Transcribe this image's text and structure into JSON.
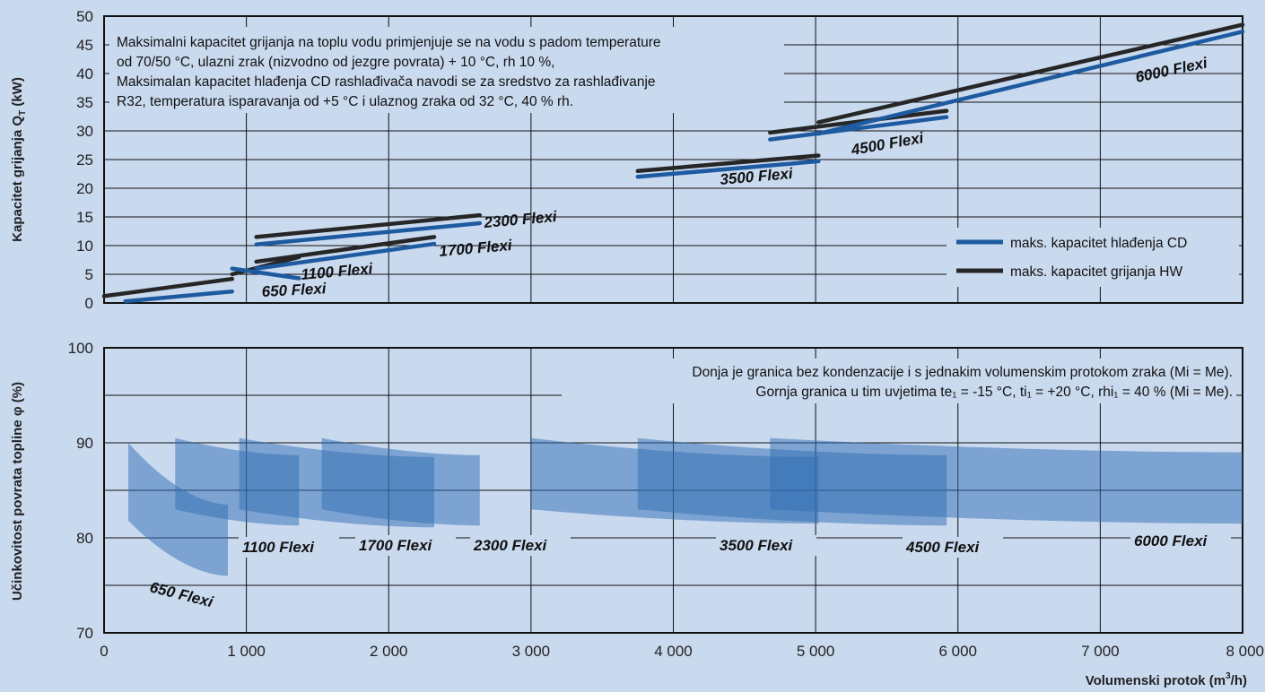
{
  "chart_data": [
    {
      "type": "line",
      "ylabel": "Kapacitet grijanja Q",
      "ylabel_sub": "T",
      "ylabel_unit": " (kW)",
      "xlim": [
        0,
        8000
      ],
      "ylim": [
        0,
        50
      ],
      "yticks": [
        "0",
        "5",
        "10",
        "15",
        "20",
        "25",
        "30",
        "35",
        "40",
        "45",
        "50"
      ],
      "grid": true,
      "note_lines": [
        "Maksimalni kapacitet grijanja na toplu vodu primjenjuje se na vodu s padom temperature",
        "od 70/50 °C, ulazni zrak (nizvodno od jezgre povrata) + 10 °C, rh 10 %,",
        "Maksimalan kapacitet hlađenja CD rashlađivača navodi se za sredstvo za rashlađivanje",
        "R32, temperatura isparavanja od +5 °C i ulaznog zraka od 32 °C, 40 % rh."
      ],
      "legend": {
        "position": "bottom-right",
        "items": [
          {
            "label": "maks. kapacitet hlađenja CD",
            "color": "#1e5aa0"
          },
          {
            "label": "maks. kapacitet grijanja HW",
            "color": "#262626"
          }
        ]
      },
      "models": [
        {
          "name": "650 Flexi",
          "hw": [
            [
              0,
              1.2
            ],
            [
              900,
              4.2
            ]
          ],
          "cd": [
            [
              150,
              0.3
            ],
            [
              900,
              2.0
            ]
          ]
        },
        {
          "name": "1100 Flexi",
          "hw": [
            [
              900,
              5.0
            ],
            [
              1370,
              8.0
            ]
          ],
          "cd": [
            [
              900,
              6.0
            ],
            [
              1370,
              4.3
            ]
          ]
        },
        {
          "name": "1700 Flexi",
          "hw": [
            [
              1070,
              7.2
            ],
            [
              2320,
              11.5
            ]
          ],
          "cd": [
            [
              1070,
              6.0
            ],
            [
              2320,
              10.3
            ]
          ]
        },
        {
          "name": "2300 Flexi",
          "hw": [
            [
              1070,
              11.5
            ],
            [
              2640,
              15.3
            ]
          ],
          "cd": [
            [
              1070,
              10.2
            ],
            [
              2640,
              13.9
            ]
          ]
        },
        {
          "name": "3500 Flexi",
          "hw": [
            [
              3750,
              23.0
            ],
            [
              5020,
              25.7
            ]
          ],
          "cd": [
            [
              3750,
              22.0
            ],
            [
              5020,
              24.7
            ]
          ]
        },
        {
          "name": "4500 Flexi",
          "hw": [
            [
              4680,
              29.7
            ],
            [
              5920,
              33.5
            ]
          ],
          "cd": [
            [
              4680,
              28.5
            ],
            [
              5920,
              32.4
            ]
          ]
        },
        {
          "name": "6000 Flexi",
          "hw": [
            [
              5020,
              31.5
            ],
            [
              8000,
              48.5
            ]
          ],
          "cd": [
            [
              5020,
              29.5
            ],
            [
              8000,
              47.3
            ]
          ]
        }
      ]
    },
    {
      "type": "area",
      "ylabel": "Učinkovitost povrata topline φ (%)",
      "xlabel": "Volumenski protok (m",
      "xlabel_sup": "3",
      "xlabel_end": "/h)",
      "xlim": [
        0,
        8000
      ],
      "ylim": [
        70,
        100
      ],
      "xticks": [
        "0",
        "1 000",
        "2 000",
        "3 000",
        "4 000",
        "5 000",
        "6 000",
        "7 000",
        "8 000"
      ],
      "yticks": [
        "70",
        "80",
        "90",
        "100"
      ],
      "grid": true,
      "note_lines": [
        "Donja je granica bez kondenzacije i s jednakim volumenskim protokom zraka (Mi = Me).",
        "Gornja granica u tim uvjetima te₁ = -15 °C, ti₁ = +20 °C, rhi₁ = 40 % (Mi = Me)."
      ],
      "bands": [
        {
          "name": "650 Flexi",
          "x": [
            170,
            870
          ],
          "upper": [
            90.0,
            83.5
          ],
          "lower": [
            81.8,
            76.0
          ]
        },
        {
          "name": "1100 Flexi",
          "x": [
            500,
            1370
          ],
          "upper": [
            90.5,
            88.7
          ],
          "lower": [
            83.0,
            81.3
          ]
        },
        {
          "name": "1700 Flexi",
          "x": [
            950,
            2320
          ],
          "upper": [
            90.5,
            88.5
          ],
          "lower": [
            83.0,
            81.1
          ]
        },
        {
          "name": "2300 Flexi",
          "x": [
            1530,
            2640
          ],
          "upper": [
            90.5,
            88.7
          ],
          "lower": [
            83.0,
            81.3
          ]
        },
        {
          "name": "3500 Flexi",
          "x": [
            3000,
            5020
          ],
          "upper": [
            90.5,
            88.5
          ],
          "lower": [
            83.0,
            81.5
          ]
        },
        {
          "name": "4500 Flexi",
          "x": [
            3750,
            5920
          ],
          "upper": [
            90.5,
            88.7
          ],
          "lower": [
            83.0,
            81.3
          ]
        },
        {
          "name": "6000 Flexi",
          "x": [
            4680,
            8000
          ],
          "upper": [
            90.5,
            89.0
          ],
          "lower": [
            83.0,
            81.5
          ]
        }
      ]
    }
  ]
}
